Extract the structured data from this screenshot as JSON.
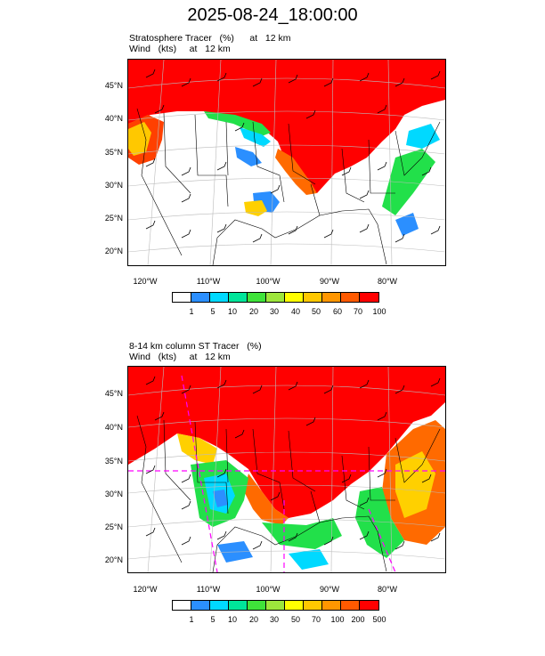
{
  "title": "2025-08-24_18:00:00",
  "panels": [
    {
      "line1": "Stratosphere Tracer   (%)      at   12 km",
      "line2": "Wind   (kts)     at   12 km",
      "lat_labels": [
        "45°N",
        "40°N",
        "35°N",
        "30°N",
        "25°N",
        "20°N"
      ],
      "lon_labels": [
        "120°W",
        "110°W",
        "100°W",
        "90°W",
        "80°W"
      ],
      "colorbar_labels": [
        "1",
        "5",
        "10",
        "20",
        "30",
        "40",
        "50",
        "60",
        "70",
        "100"
      ]
    },
    {
      "line1": "8-14 km column ST Tracer   (%)",
      "line2": "Wind   (kts)     at   12 km",
      "lat_labels": [
        "45°N",
        "40°N",
        "35°N",
        "30°N",
        "25°N",
        "20°N"
      ],
      "lon_labels": [
        "120°W",
        "110°W",
        "100°W",
        "90°W",
        "80°W"
      ],
      "colorbar_labels": [
        "1",
        "5",
        "10",
        "20",
        "30",
        "50",
        "70",
        "100",
        "200",
        "500"
      ]
    }
  ],
  "colorbar_colors": [
    "#ffffff",
    "#2b8fff",
    "#00d9ff",
    "#00e59a",
    "#3fe33a",
    "#9de63c",
    "#ffff00",
    "#ffc800",
    "#ff9600",
    "#ff5a00",
    "#ff0000"
  ],
  "field_colors": {
    "high": "#ff0000",
    "orange": "#ff6a00",
    "yellow": "#ffd000",
    "green": "#22e04a",
    "cyan": "#00d9ff",
    "blue": "#2b8fff",
    "boundary": "#000000",
    "dashed": "#ff00ff"
  }
}
